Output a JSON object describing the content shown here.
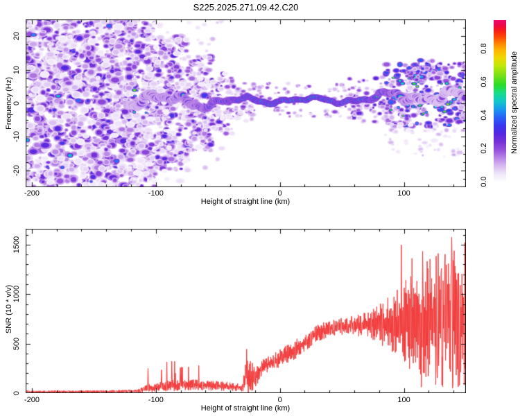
{
  "title": "S225.2025.271.09.42.C20",
  "chart_data": [
    {
      "id": "spectrogram",
      "type": "heatmap",
      "xlabel": "Height of straight line (km)",
      "ylabel": "Frequency (Hz)",
      "xlim": [
        -205,
        150
      ],
      "ylim": [
        -25,
        25
      ],
      "x_major_ticks": [
        -200,
        -100,
        0,
        100
      ],
      "x_minor_step": 20,
      "y_major_ticks": [
        -20,
        -10,
        0,
        10,
        20
      ],
      "y_minor_step": 2.5,
      "colorbar": {
        "label": "Normalized spectral amplitude",
        "ticks": [
          0.0,
          0.2,
          0.4,
          0.6,
          0.8
        ],
        "value_range": [
          0.0,
          0.97
        ],
        "stops": [
          [
            0.0,
            "#ffffff"
          ],
          [
            0.05,
            "#f0e6fa"
          ],
          [
            0.1,
            "#d8baf0"
          ],
          [
            0.15,
            "#b884e6"
          ],
          [
            0.2,
            "#9650dc"
          ],
          [
            0.25,
            "#7630d8"
          ],
          [
            0.3,
            "#5428e0"
          ],
          [
            0.35,
            "#3838f0"
          ],
          [
            0.4,
            "#2860f8"
          ],
          [
            0.45,
            "#1898f0"
          ],
          [
            0.5,
            "#10c8c8"
          ],
          [
            0.55,
            "#18dc8c"
          ],
          [
            0.6,
            "#28dc28"
          ],
          [
            0.66,
            "#78e018"
          ],
          [
            0.72,
            "#c0e808"
          ],
          [
            0.77,
            "#f0d800"
          ],
          [
            0.82,
            "#ffb400"
          ],
          [
            0.86,
            "#ff8200"
          ],
          [
            0.9,
            "#ff4600"
          ],
          [
            0.94,
            "#f81a1a"
          ],
          [
            0.97,
            "#ee0846"
          ],
          [
            1.0,
            "#ec0a6e"
          ]
        ]
      },
      "ridge": [
        [
          -122,
          1.7,
          0.42,
          4.2,
          0.45,
          1.1
        ],
        [
          -100,
          1.2,
          0.5,
          3.8,
          0.35,
          1.0
        ],
        [
          -85,
          0.3,
          0.55,
          3.6,
          0.3,
          1.0
        ],
        [
          -70,
          0.8,
          0.62,
          3.4,
          0.25,
          0.9
        ],
        [
          -55,
          0.2,
          0.72,
          3.1,
          0.18,
          0.8
        ],
        [
          -42,
          0.5,
          0.82,
          2.9,
          0.12,
          0.65
        ],
        [
          -30,
          0.8,
          0.9,
          2.7,
          0.07,
          0.5
        ],
        [
          -10,
          0.8,
          0.94,
          2.6,
          0.05,
          0.38
        ],
        [
          10,
          1.0,
          0.95,
          2.6,
          0.05,
          0.35
        ],
        [
          30,
          1.0,
          0.95,
          2.6,
          0.05,
          0.35
        ],
        [
          50,
          0.9,
          0.93,
          2.6,
          0.06,
          0.4
        ],
        [
          65,
          1.0,
          0.9,
          2.8,
          0.1,
          0.5
        ],
        [
          78,
          1.3,
          0.85,
          3.0,
          0.15,
          0.6
        ],
        [
          88,
          1.8,
          0.72,
          3.2,
          0.22,
          0.8
        ],
        [
          95,
          2.8,
          0.62,
          3.4,
          0.3,
          1.0
        ],
        [
          103,
          3.2,
          0.55,
          3.6,
          0.4,
          1.1
        ],
        [
          110,
          2.3,
          0.46,
          3.8,
          0.55,
          1.2
        ],
        [
          120,
          1.8,
          0.4,
          3.9,
          0.65,
          1.2
        ],
        [
          135,
          1.3,
          0.38,
          3.9,
          0.7,
          1.2
        ],
        [
          150,
          0.8,
          0.4,
          3.9,
          0.6,
          1.2
        ]
      ],
      "noise_regions": [
        [
          -205,
          -120,
          -25,
          25,
          1250,
          0.04,
          0.3,
          1.6,
          4.6
        ],
        [
          -122,
          -100,
          -25,
          25,
          300,
          0.05,
          0.3,
          1.6,
          4.2
        ],
        [
          -100,
          -75,
          -20,
          20,
          300,
          0.05,
          0.32,
          1.6,
          4.0
        ],
        [
          -75,
          -55,
          -14,
          14,
          180,
          0.05,
          0.33,
          1.5,
          3.8
        ],
        [
          -55,
          -38,
          -9,
          9,
          90,
          0.05,
          0.3,
          1.5,
          3.5
        ],
        [
          -38,
          -20,
          -6,
          6,
          45,
          0.05,
          0.26,
          1.4,
          3.0
        ],
        [
          -120,
          -40,
          -25,
          25,
          90,
          0.03,
          0.1,
          1.6,
          3.6
        ],
        [
          -35,
          85,
          -4.5,
          6,
          130,
          0.06,
          0.22,
          1.2,
          2.6
        ],
        [
          55,
          95,
          -6,
          8,
          90,
          0.07,
          0.3,
          1.4,
          3.0
        ],
        [
          85,
          150,
          -7,
          12,
          260,
          0.08,
          0.45,
          1.5,
          3.6
        ],
        [
          88,
          150,
          -4,
          9,
          60,
          0.45,
          0.68,
          1.2,
          2.2
        ],
        [
          108,
          124,
          7,
          13,
          40,
          0.1,
          0.5,
          1.4,
          3.0
        ],
        [
          85,
          150,
          -16,
          -6,
          60,
          0.03,
          0.12,
          1.4,
          3.0
        ],
        [
          -205,
          -120,
          -25,
          25,
          15,
          0.3,
          0.48,
          1.5,
          3.0
        ],
        [
          -120,
          -100,
          -3,
          4,
          10,
          0.45,
          0.65,
          1.3,
          2.2
        ]
      ]
    },
    {
      "id": "snr",
      "type": "line",
      "xlabel": "Height of straight line (km)",
      "ylabel": "SNR (10 * v/v)",
      "xlim": [
        -205,
        150
      ],
      "ylim": [
        0,
        1660
      ],
      "x_major_ticks": [
        -200,
        -100,
        0,
        100
      ],
      "x_minor_step": 20,
      "y_major_ticks": [
        0,
        500,
        1000,
        1500
      ],
      "y_minor_step": 100,
      "line_color": "#f23b3b",
      "envelope": [
        [
          -205,
          15,
          12
        ],
        [
          -150,
          15,
          12
        ],
        [
          -115,
          20,
          16
        ],
        [
          -105,
          50,
          45
        ],
        [
          -90,
          75,
          55
        ],
        [
          -75,
          85,
          60
        ],
        [
          -55,
          75,
          50
        ],
        [
          -38,
          65,
          45
        ],
        [
          -30,
          55,
          40
        ],
        [
          -27,
          220,
          260
        ],
        [
          -23,
          170,
          170
        ],
        [
          -20,
          140,
          110
        ],
        [
          -15,
          260,
          90
        ],
        [
          -8,
          300,
          80
        ],
        [
          0,
          350,
          90
        ],
        [
          10,
          420,
          100
        ],
        [
          20,
          510,
          90
        ],
        [
          30,
          600,
          90
        ],
        [
          40,
          660,
          80
        ],
        [
          55,
          680,
          90
        ],
        [
          70,
          690,
          130
        ],
        [
          80,
          700,
          200
        ],
        [
          90,
          680,
          320
        ],
        [
          100,
          700,
          430
        ],
        [
          110,
          720,
          520
        ],
        [
          120,
          740,
          620
        ],
        [
          130,
          760,
          700
        ],
        [
          140,
          780,
          760
        ],
        [
          150,
          710,
          620
        ]
      ]
    }
  ],
  "frame_color": "#111111"
}
